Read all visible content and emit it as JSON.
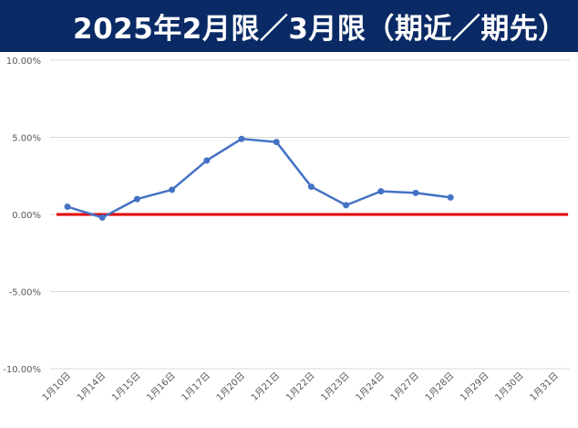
{
  "header": {
    "title": "2025年2月限／3月限（期近／期先）"
  },
  "chart_data": {
    "type": "line",
    "title": "2025年2月限／3月限（期近／期先）",
    "xlabel": "",
    "ylabel": "",
    "ylim": [
      -0.1,
      0.1
    ],
    "yticks": [
      0.1,
      0.05,
      0.0,
      -0.05,
      -0.1
    ],
    "ytick_labels": [
      "10.00%",
      "5.00%",
      "0.00%",
      "-5.00%",
      "-10.00%"
    ],
    "grid": true,
    "categories": [
      "1月10日",
      "1月14日",
      "1月15日",
      "1月16日",
      "1月17日",
      "1月20日",
      "1月21日",
      "1月22日",
      "1月23日",
      "1月24日",
      "1月27日",
      "1月28日",
      "1月29日",
      "1月30日",
      "1月31日"
    ],
    "series": [
      {
        "color": "#4472c4",
        "values": [
          0.005,
          -0.002,
          0.01,
          0.016,
          0.035,
          0.049,
          0.047,
          0.018,
          0.006,
          0.015,
          0.014,
          0.011,
          null,
          null,
          null
        ]
      }
    ],
    "reference_line": {
      "y": 0.0,
      "color": "#e00000"
    }
  }
}
